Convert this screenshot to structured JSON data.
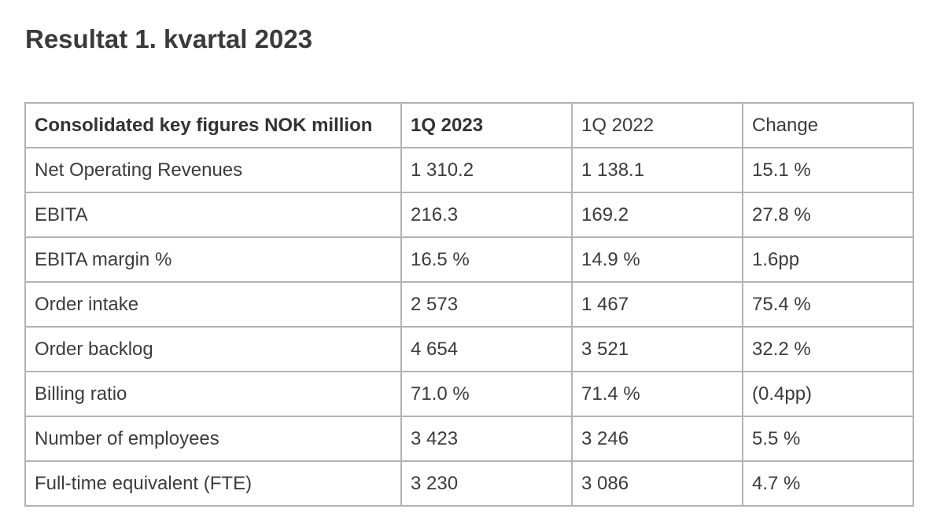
{
  "title": "Resultat 1. kvartal 2023",
  "table": {
    "headers": [
      "Consolidated key figures NOK million",
      "1Q 2023",
      "1Q 2022",
      "Change"
    ],
    "rows": [
      [
        "Net Operating Revenues",
        "1 310.2",
        "1 138.1",
        "15.1 %"
      ],
      [
        "EBITA",
        "216.3",
        "169.2",
        "27.8 %"
      ],
      [
        "EBITA margin %",
        "16.5 %",
        "14.9 %",
        "1.6pp"
      ],
      [
        "Order intake",
        "2 573",
        "1 467",
        "75.4 %"
      ],
      [
        "Order backlog",
        "4 654",
        "3 521",
        "32.2 %"
      ],
      [
        "Billing ratio",
        "71.0 %",
        "71.4 %",
        "(0.4pp)"
      ],
      [
        "Number of employees",
        "3 423",
        "3 246",
        "5.5 %"
      ],
      [
        "Full-time equivalent (FTE)",
        "3 230",
        "3 086",
        "4.7 %"
      ]
    ]
  }
}
